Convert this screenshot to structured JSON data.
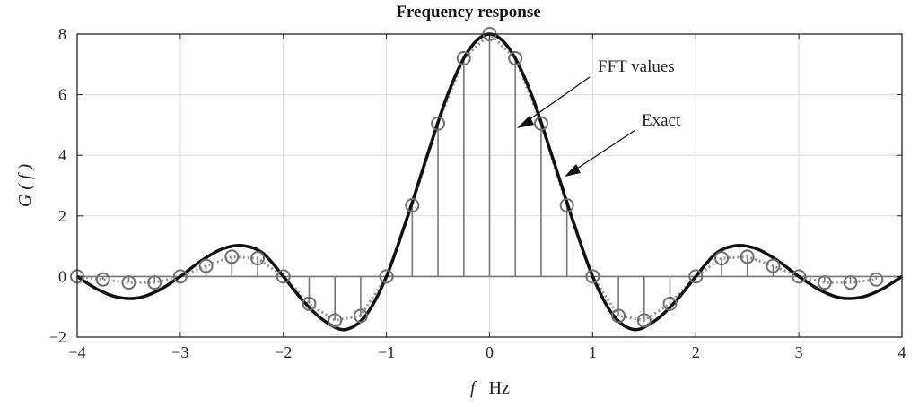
{
  "chart_data": {
    "type": "line",
    "title": "Frequency response",
    "xlabel_italic": "f",
    "xlabel_unit": "Hz",
    "ylabel": "G ( f )",
    "xlim": [
      -4,
      4
    ],
    "ylim": [
      -2,
      8
    ],
    "xticks": [
      -4,
      -3,
      -2,
      -1,
      0,
      1,
      2,
      3,
      4
    ],
    "xtick_labels": [
      "−4",
      "−3",
      "−2",
      "−1",
      "0",
      "1",
      "2",
      "3",
      "4"
    ],
    "yticks": [
      -2,
      0,
      2,
      4,
      6,
      8
    ],
    "ytick_labels": [
      "−2",
      "0",
      "2",
      "4",
      "6",
      "8"
    ],
    "grid": true,
    "series": [
      {
        "name": "Exact",
        "style": "solid",
        "color": "#111111",
        "x": [
          -4.0,
          -3.8,
          -3.6,
          -3.4,
          -3.2,
          -3.0,
          -2.8,
          -2.6,
          -2.4,
          -2.2,
          -2.0,
          -1.8,
          -1.6,
          -1.4,
          -1.2,
          -1.0,
          -0.8,
          -0.6,
          -0.4,
          -0.2,
          0.0,
          0.2,
          0.4,
          0.6,
          0.8,
          1.0,
          1.2,
          1.4,
          1.6,
          1.8,
          2.0,
          2.2,
          2.4,
          2.6,
          2.8,
          3.0,
          3.2,
          3.4,
          3.6,
          3.8,
          4.0
        ],
        "y": [
          0.0,
          -0.43,
          -0.69,
          -0.7,
          -0.44,
          0.0,
          0.51,
          0.9,
          1.02,
          0.77,
          0.0,
          -0.84,
          -1.47,
          -1.75,
          -1.28,
          0.0,
          1.93,
          4.04,
          6.06,
          7.48,
          8.0,
          7.48,
          6.06,
          4.04,
          1.93,
          0.0,
          -1.28,
          -1.75,
          -1.47,
          -0.84,
          0.0,
          0.77,
          1.02,
          0.9,
          0.51,
          0.0,
          -0.44,
          -0.7,
          -0.69,
          -0.43,
          0.0
        ]
      },
      {
        "name": "FFT values",
        "style": "stem",
        "color": "#888888",
        "x": [
          -4.0,
          -3.75,
          -3.5,
          -3.25,
          -3.0,
          -2.75,
          -2.5,
          -2.25,
          -2.0,
          -1.75,
          -1.5,
          -1.25,
          -1.0,
          -0.75,
          -0.5,
          -0.25,
          0.0,
          0.25,
          0.5,
          0.75,
          1.0,
          1.25,
          1.5,
          1.75,
          2.0,
          2.25,
          2.5,
          2.75,
          3.0,
          3.25,
          3.5,
          3.75
        ],
        "y": [
          0.0,
          -0.1,
          -0.2,
          -0.2,
          0.0,
          0.35,
          0.65,
          0.6,
          0.0,
          -0.9,
          -1.45,
          -1.3,
          0.0,
          2.35,
          5.05,
          7.2,
          8.0,
          7.2,
          5.05,
          2.35,
          0.0,
          -1.3,
          -1.45,
          -0.9,
          0.0,
          0.6,
          0.65,
          0.35,
          0.0,
          -0.2,
          -0.2,
          -0.1
        ]
      }
    ],
    "annotations": [
      {
        "text": "FFT values"
      },
      {
        "text": "Exact"
      }
    ]
  }
}
